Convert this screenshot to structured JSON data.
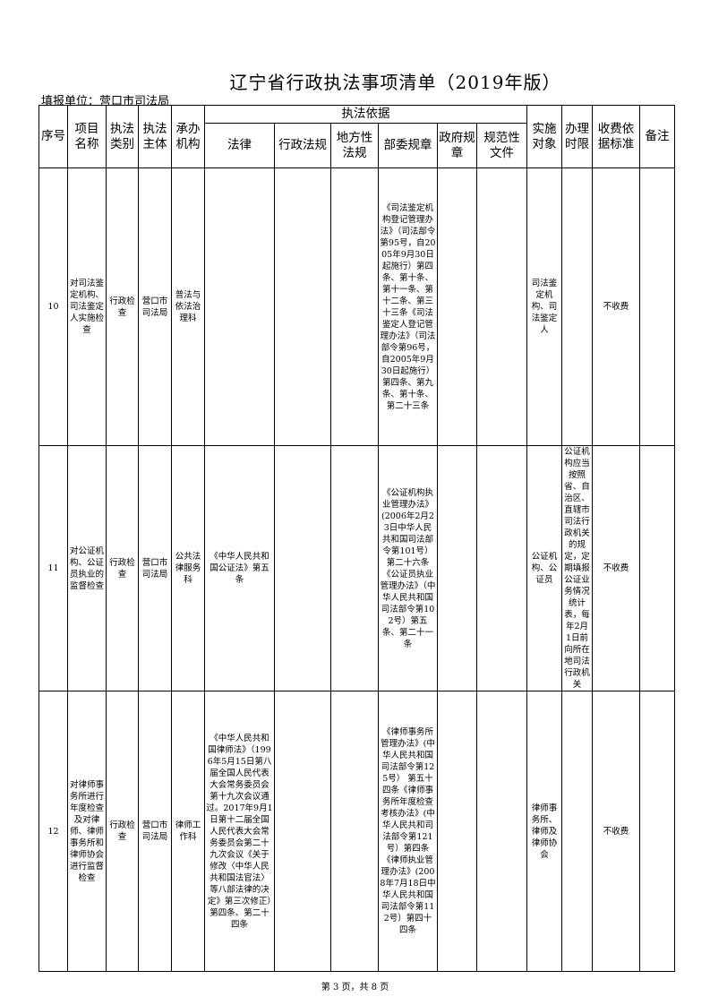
{
  "title": "辽宁省行政执法事项清单（2019年版）",
  "unit": "填报单位：营口市司法局",
  "headers": {
    "seq": "序号",
    "name": "项目名称",
    "type": "执法类别",
    "subject": "执法主体",
    "org": "承办机构",
    "basis": "执法依据",
    "law": "法律",
    "admin_reg": "行政法规",
    "local_reg": "地方性法规",
    "dept_rule": "部委规章",
    "gov_rule": "政府规章",
    "norm_doc": "规范性文件",
    "target": "实施对象",
    "time_limit": "办理时限",
    "fee": "收费依据标准",
    "remark": "备注"
  },
  "rows": [
    {
      "seq": "10",
      "name": "对司法鉴定机构、司法鉴定人实施检查",
      "type": "行政检查",
      "subject": "营口市司法局",
      "org": "普法与依法治理科",
      "law": "",
      "admin_reg": "",
      "local_reg": "",
      "dept_rule": "《司法鉴定机构登记管理办法》（司法部令第95号，自2005年9月30日起施行）第四条、第十条、第十一条、第十二条、第三十三条《司法鉴定人登记管理办法》（司法部令第96号，自2005年9月30日起施行）第四条、第九条、第十条、第二十三条",
      "gov_rule": "",
      "norm_doc": "",
      "target": "司法鉴定机构、司法鉴定人",
      "time_limit": "",
      "fee": "不收费",
      "remark": ""
    },
    {
      "seq": "11",
      "name": "对公证机构、公证员执业的监督检查",
      "type": "行政检查",
      "subject": "营口市司法局",
      "org": "公共法律服务科",
      "law": "《中华人民共和国公证法》第五条",
      "admin_reg": "",
      "local_reg": "",
      "dept_rule": "《公证机构执业管理办法》(2006年2月23日中华人民共和国司法部令第101号）第二十六条《公证员执业管理办法》（中华人民共和国司法部令第102号）第五条、第二十一条",
      "gov_rule": "",
      "norm_doc": "",
      "target": "公证机构、公证员",
      "time_limit": "公证机构应当按照省、自治区、直辖市司法行政机关的规定，定期填报公证业务情况统计表，每年2月1日前向所在地司法行政机关",
      "fee": "不收费",
      "remark": ""
    },
    {
      "seq": "12",
      "name": "对律师事务所进行年度检查及对律师、律师事务所和律师协会进行监督检查",
      "type": "行政检查",
      "subject": "营口市司法局",
      "org": "律师工作科",
      "law": "《中华人民共和国律师法》（1996年5月15日第八届全国人民代表大会常务委员会第十九次会议通过。2017年9月1日第十二届全国人民代表大会常务委员会第二十九次会议《关于修改〈中华人民共和国法官法〉等八部法律的决定》第三次修正）第四条、第二十四条",
      "admin_reg": "",
      "local_reg": "",
      "dept_rule": "《律师事务所管理办法》(中华人民共和国司法部令第125号） 第五十四条《律师事务所年度检查考核办法》(中华人民共和司法部令第121号）第四条《律师执业管理办法》(2008年7月18日中华人民共和国司法部令第112号）第四十四条",
      "gov_rule": "",
      "norm_doc": "",
      "target": "律师事务所、律师及律师协会",
      "time_limit": "",
      "fee": "不收费",
      "remark": ""
    }
  ],
  "footer": "第 3 页，共 8 页"
}
